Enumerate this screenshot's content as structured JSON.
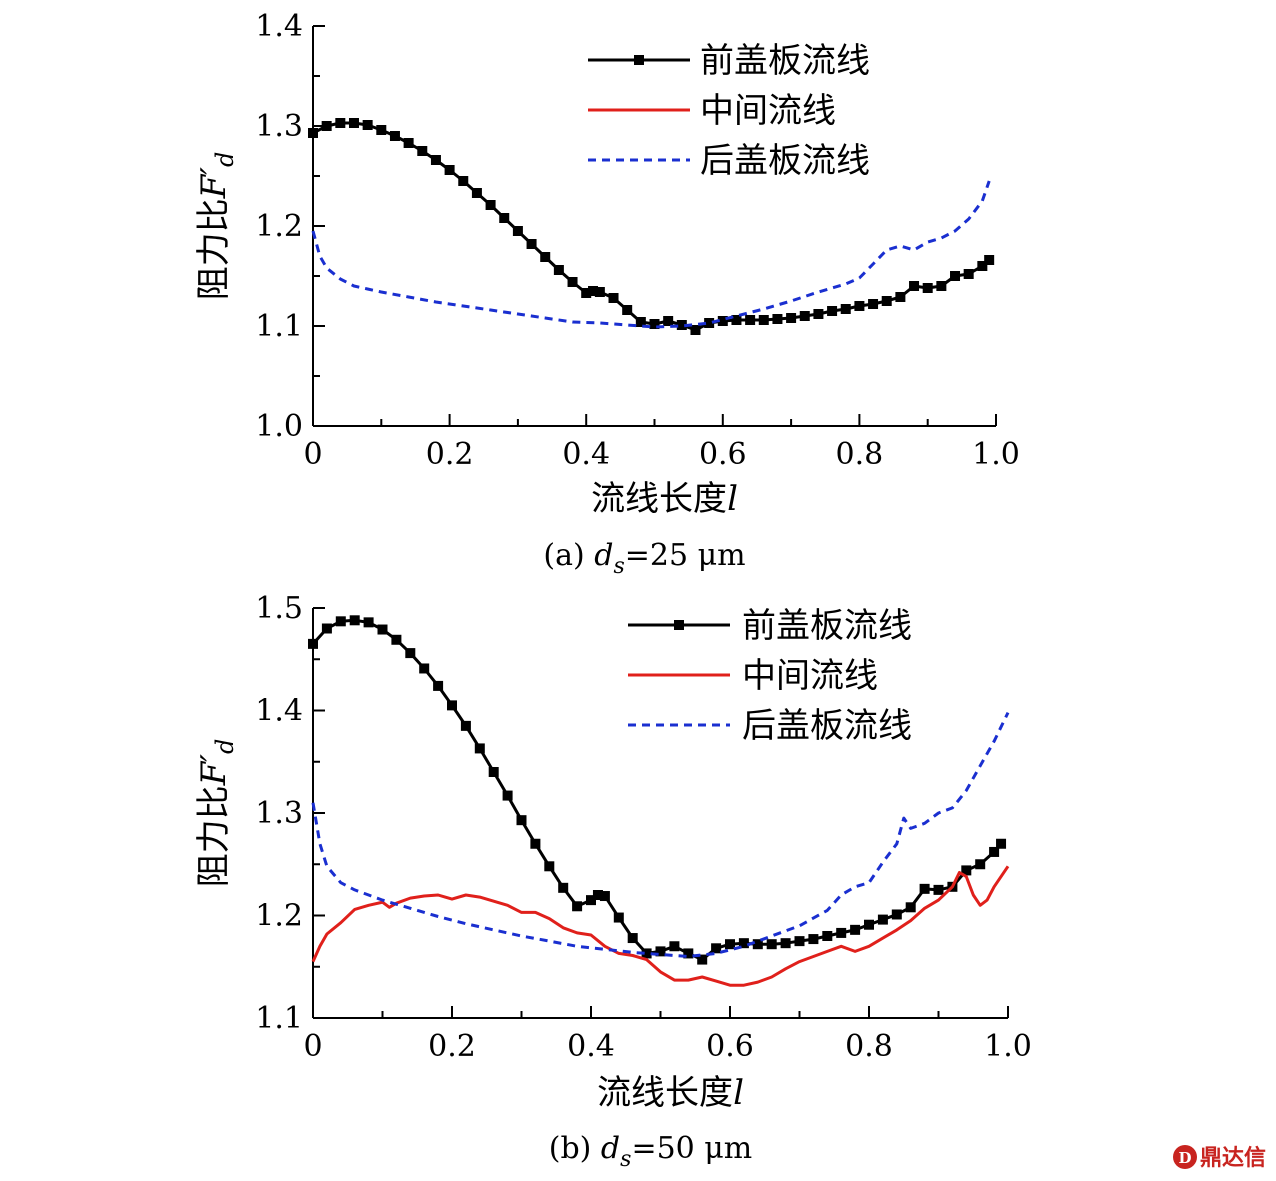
{
  "chart_data": [
    {
      "type": "line",
      "caption": "(a) d_s=25 μm",
      "xlabel": "流线长度l",
      "ylabel": "阻力比F′d",
      "xlim": [
        0,
        1.0
      ],
      "ylim": [
        1.0,
        1.4
      ],
      "xticks": [
        "0",
        "0.2",
        "0.4",
        "0.6",
        "0.8",
        "1.0"
      ],
      "yticks": [
        "1.0",
        "1.1",
        "1.2",
        "1.3",
        "1.4"
      ],
      "legend_position": "top-right",
      "series": [
        {
          "name": "前盖板流线",
          "color": "#000000",
          "style": "solid-square-markers",
          "x": [
            0,
            0.02,
            0.04,
            0.06,
            0.08,
            0.1,
            0.12,
            0.14,
            0.16,
            0.18,
            0.2,
            0.22,
            0.24,
            0.26,
            0.28,
            0.3,
            0.32,
            0.34,
            0.36,
            0.38,
            0.4,
            0.41,
            0.42,
            0.44,
            0.46,
            0.48,
            0.5,
            0.52,
            0.54,
            0.56,
            0.58,
            0.6,
            0.62,
            0.64,
            0.66,
            0.68,
            0.7,
            0.72,
            0.74,
            0.76,
            0.78,
            0.8,
            0.82,
            0.84,
            0.86,
            0.88,
            0.9,
            0.92,
            0.94,
            0.96,
            0.98,
            0.99
          ],
          "y": [
            1.293,
            1.3,
            1.303,
            1.303,
            1.301,
            1.296,
            1.29,
            1.283,
            1.275,
            1.266,
            1.256,
            1.245,
            1.233,
            1.221,
            1.208,
            1.195,
            1.182,
            1.169,
            1.156,
            1.144,
            1.133,
            1.135,
            1.134,
            1.128,
            1.116,
            1.104,
            1.102,
            1.105,
            1.101,
            1.096,
            1.103,
            1.105,
            1.106,
            1.106,
            1.106,
            1.107,
            1.108,
            1.11,
            1.112,
            1.115,
            1.117,
            1.12,
            1.122,
            1.125,
            1.129,
            1.14,
            1.138,
            1.14,
            1.15,
            1.152,
            1.16,
            1.166
          ]
        },
        {
          "name": "中间流线",
          "color": "#e0201b",
          "style": "solid",
          "x": [],
          "y": []
        },
        {
          "name": "后盖板流线",
          "color": "#1a2fd0",
          "style": "dashed",
          "x": [
            0,
            0.01,
            0.02,
            0.04,
            0.06,
            0.08,
            0.1,
            0.14,
            0.18,
            0.22,
            0.26,
            0.3,
            0.34,
            0.38,
            0.42,
            0.46,
            0.5,
            0.54,
            0.58,
            0.62,
            0.66,
            0.7,
            0.74,
            0.78,
            0.8,
            0.82,
            0.84,
            0.86,
            0.88,
            0.9,
            0.92,
            0.94,
            0.96,
            0.98,
            0.99
          ],
          "y": [
            1.195,
            1.17,
            1.158,
            1.147,
            1.14,
            1.137,
            1.134,
            1.129,
            1.124,
            1.12,
            1.116,
            1.112,
            1.108,
            1.104,
            1.103,
            1.101,
            1.099,
            1.1,
            1.103,
            1.11,
            1.117,
            1.125,
            1.134,
            1.142,
            1.148,
            1.162,
            1.176,
            1.18,
            1.176,
            1.184,
            1.188,
            1.195,
            1.207,
            1.225,
            1.245
          ]
        }
      ]
    },
    {
      "type": "line",
      "caption": "(b) d_s=50 μm",
      "xlabel": "流线长度l",
      "ylabel": "阻力比F′d",
      "xlim": [
        0,
        1.0
      ],
      "ylim": [
        1.1,
        1.5
      ],
      "xticks": [
        "0",
        "0.2",
        "0.4",
        "0.6",
        "0.8",
        "1.0"
      ],
      "yticks": [
        "1.1",
        "1.2",
        "1.3",
        "1.4",
        "1.5"
      ],
      "legend_position": "top-right",
      "series": [
        {
          "name": "前盖板流线",
          "color": "#000000",
          "style": "solid-square-markers",
          "x": [
            0,
            0.02,
            0.04,
            0.06,
            0.08,
            0.1,
            0.12,
            0.14,
            0.16,
            0.18,
            0.2,
            0.22,
            0.24,
            0.26,
            0.28,
            0.3,
            0.32,
            0.34,
            0.36,
            0.38,
            0.4,
            0.41,
            0.42,
            0.44,
            0.46,
            0.48,
            0.5,
            0.52,
            0.54,
            0.56,
            0.58,
            0.6,
            0.62,
            0.64,
            0.66,
            0.68,
            0.7,
            0.72,
            0.74,
            0.76,
            0.78,
            0.8,
            0.82,
            0.84,
            0.86,
            0.88,
            0.9,
            0.92,
            0.94,
            0.96,
            0.98,
            0.99
          ],
          "y": [
            1.465,
            1.48,
            1.487,
            1.488,
            1.486,
            1.479,
            1.469,
            1.456,
            1.441,
            1.424,
            1.405,
            1.385,
            1.363,
            1.34,
            1.317,
            1.293,
            1.27,
            1.248,
            1.227,
            1.209,
            1.215,
            1.22,
            1.219,
            1.198,
            1.178,
            1.163,
            1.165,
            1.17,
            1.163,
            1.157,
            1.168,
            1.172,
            1.173,
            1.172,
            1.172,
            1.173,
            1.175,
            1.177,
            1.18,
            1.183,
            1.186,
            1.191,
            1.196,
            1.201,
            1.208,
            1.226,
            1.225,
            1.228,
            1.244,
            1.25,
            1.262,
            1.27
          ]
        },
        {
          "name": "中间流线",
          "color": "#e0201b",
          "style": "solid",
          "x": [
            0,
            0.01,
            0.02,
            0.04,
            0.06,
            0.08,
            0.1,
            0.11,
            0.12,
            0.14,
            0.16,
            0.18,
            0.19,
            0.2,
            0.22,
            0.24,
            0.26,
            0.28,
            0.3,
            0.32,
            0.34,
            0.36,
            0.38,
            0.4,
            0.42,
            0.44,
            0.46,
            0.48,
            0.5,
            0.52,
            0.54,
            0.56,
            0.58,
            0.6,
            0.62,
            0.64,
            0.66,
            0.68,
            0.7,
            0.72,
            0.74,
            0.76,
            0.78,
            0.8,
            0.82,
            0.84,
            0.86,
            0.88,
            0.9,
            0.92,
            0.93,
            0.94,
            0.95,
            0.96,
            0.97,
            0.98,
            1.0
          ],
          "y": [
            1.155,
            1.17,
            1.182,
            1.193,
            1.206,
            1.21,
            1.213,
            1.208,
            1.212,
            1.217,
            1.219,
            1.22,
            1.218,
            1.216,
            1.22,
            1.218,
            1.214,
            1.21,
            1.203,
            1.203,
            1.197,
            1.188,
            1.183,
            1.181,
            1.17,
            1.163,
            1.161,
            1.157,
            1.145,
            1.137,
            1.137,
            1.14,
            1.136,
            1.132,
            1.132,
            1.135,
            1.14,
            1.148,
            1.155,
            1.16,
            1.165,
            1.17,
            1.165,
            1.17,
            1.178,
            1.186,
            1.195,
            1.207,
            1.215,
            1.228,
            1.242,
            1.238,
            1.22,
            1.21,
            1.215,
            1.228,
            1.248
          ]
        },
        {
          "name": "后盖板流线",
          "color": "#1a2fd0",
          "style": "dashed",
          "x": [
            0,
            0.01,
            0.02,
            0.04,
            0.06,
            0.08,
            0.1,
            0.14,
            0.18,
            0.22,
            0.26,
            0.3,
            0.34,
            0.38,
            0.42,
            0.46,
            0.5,
            0.54,
            0.58,
            0.62,
            0.66,
            0.7,
            0.74,
            0.76,
            0.78,
            0.8,
            0.82,
            0.84,
            0.85,
            0.86,
            0.88,
            0.9,
            0.92,
            0.94,
            0.96,
            0.98,
            1.0
          ],
          "y": [
            1.31,
            1.27,
            1.248,
            1.232,
            1.225,
            1.22,
            1.215,
            1.207,
            1.199,
            1.192,
            1.186,
            1.18,
            1.175,
            1.17,
            1.167,
            1.164,
            1.162,
            1.16,
            1.163,
            1.17,
            1.18,
            1.19,
            1.205,
            1.22,
            1.228,
            1.232,
            1.252,
            1.27,
            1.295,
            1.285,
            1.29,
            1.3,
            1.305,
            1.322,
            1.346,
            1.37,
            1.398
          ]
        }
      ]
    }
  ],
  "watermark": {
    "text": "鼎达信",
    "logo_letter": "D"
  }
}
